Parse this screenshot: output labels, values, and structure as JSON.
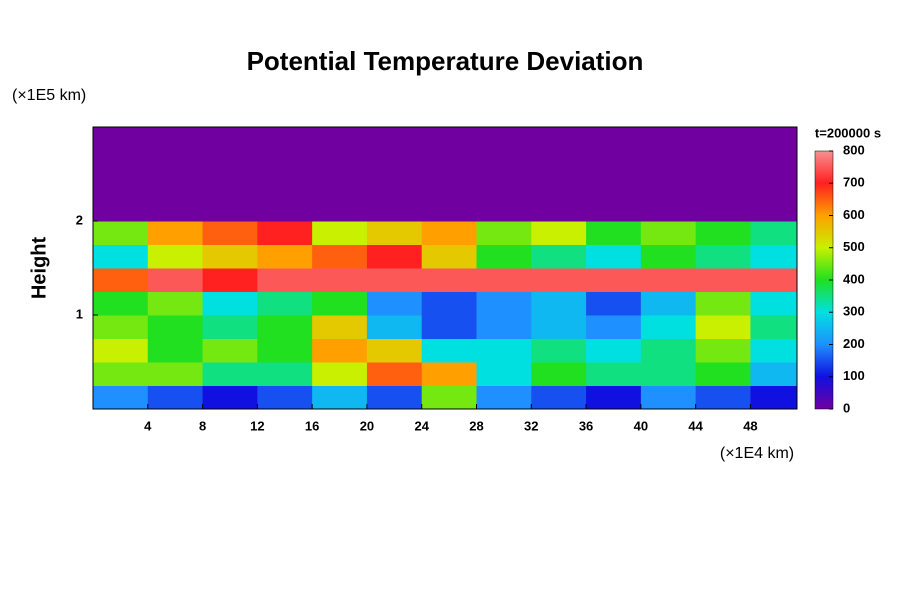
{
  "chart_data": {
    "type": "heatmap",
    "title": "Potential Temperature Deviation",
    "ylabel": "Height",
    "yunit": "(×1E5 km)",
    "xunit": "(×1E4 km)",
    "annotation": "t=200000 s",
    "xlim": [
      0,
      51.4
    ],
    "xticks": [
      4,
      8,
      12,
      16,
      20,
      24,
      28,
      32,
      36,
      40,
      44,
      48
    ],
    "ylim": [
      0,
      3
    ],
    "yticks": [
      1,
      2
    ],
    "x": [
      2,
      6,
      10,
      14,
      18,
      22,
      26,
      30,
      34,
      38,
      42,
      46,
      50
    ],
    "y": [
      0.125,
      0.375,
      0.625,
      0.875,
      1.125,
      1.375,
      1.625,
      1.875,
      2.125,
      2.375,
      2.625,
      2.875
    ],
    "z": [
      [
        200,
        150,
        100,
        150,
        250,
        150,
        450,
        200,
        150,
        100,
        200,
        150,
        100
      ],
      [
        450,
        450,
        350,
        350,
        500,
        650,
        600,
        300,
        400,
        350,
        350,
        400,
        250
      ],
      [
        500,
        400,
        450,
        400,
        600,
        550,
        300,
        300,
        350,
        300,
        350,
        450,
        300
      ],
      [
        450,
        400,
        350,
        400,
        550,
        250,
        150,
        200,
        250,
        200,
        300,
        500,
        350
      ],
      [
        400,
        450,
        300,
        350,
        400,
        200,
        150,
        200,
        250,
        150,
        250,
        450,
        300
      ],
      [
        650,
        750,
        700,
        750,
        750,
        750,
        750,
        750,
        750,
        750,
        750,
        750,
        750
      ],
      [
        300,
        500,
        550,
        600,
        650,
        700,
        550,
        400,
        350,
        300,
        400,
        350,
        300
      ],
      [
        450,
        600,
        650,
        700,
        500,
        550,
        600,
        450,
        500,
        400,
        450,
        400,
        350
      ],
      [
        0,
        0,
        0,
        0,
        0,
        0,
        0,
        0,
        0,
        0,
        0,
        0,
        0
      ],
      [
        0,
        0,
        0,
        0,
        0,
        0,
        0,
        0,
        0,
        0,
        0,
        0,
        0
      ],
      [
        0,
        0,
        0,
        0,
        0,
        0,
        0,
        0,
        0,
        0,
        0,
        0,
        0
      ],
      [
        0,
        0,
        0,
        0,
        0,
        0,
        0,
        0,
        0,
        0,
        0,
        0,
        0
      ]
    ],
    "clim": [
      0,
      800
    ],
    "cticks": [
      0,
      100,
      200,
      300,
      400,
      500,
      600,
      700,
      800
    ],
    "colors": [
      "#7000a0",
      "#1010e0",
      "#1e90ff",
      "#00e0e0",
      "#20e020",
      "#c8f000",
      "#ffa000",
      "#ff2020",
      "#f89090"
    ]
  }
}
